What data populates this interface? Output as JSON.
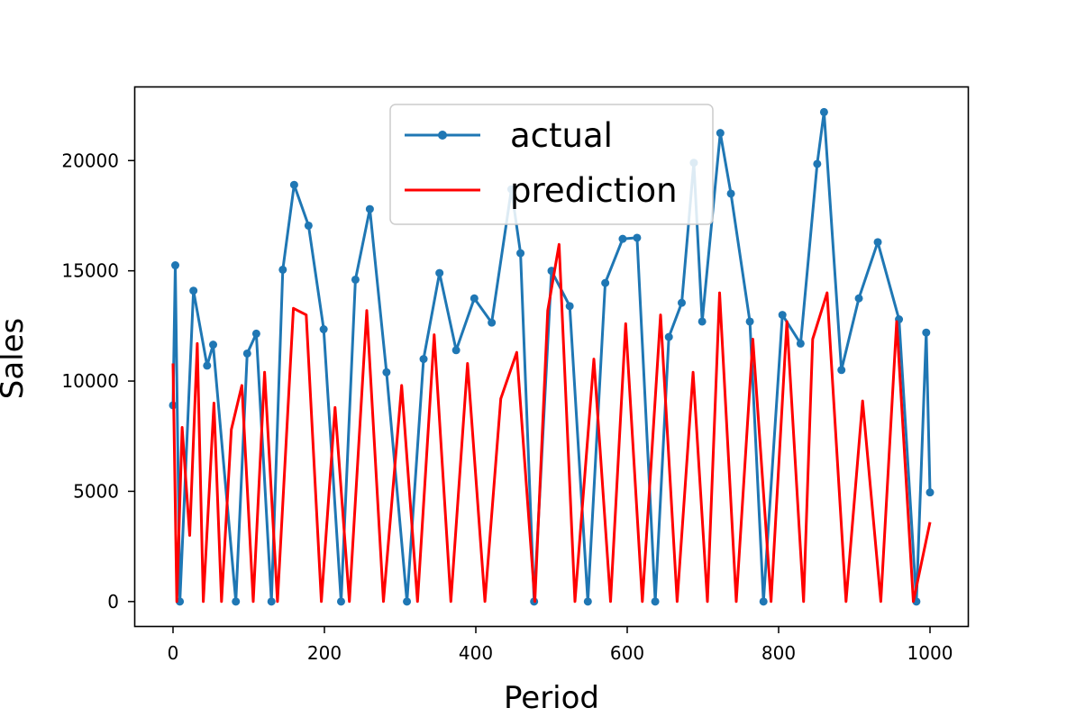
{
  "chart_data": {
    "type": "line",
    "title": "",
    "xlabel": "Period",
    "ylabel": "Sales",
    "xlim": [
      -50,
      1050
    ],
    "ylim": [
      -1110,
      23320
    ],
    "xticks": [
      0,
      200,
      400,
      600,
      800,
      1000
    ],
    "yticks": [
      0,
      5000,
      10000,
      15000,
      20000
    ],
    "grid": false,
    "legend_position": "top-center",
    "series": [
      {
        "name": "actual",
        "color": "#1f77b4",
        "marker": "circle",
        "x": [
          0,
          3,
          9,
          27,
          45,
          53,
          83,
          98,
          110,
          130,
          145,
          160,
          179,
          199,
          222,
          241,
          260,
          282,
          309,
          331,
          352,
          374,
          398,
          421,
          447,
          459,
          477,
          500,
          524,
          548,
          571,
          594,
          613,
          637,
          655,
          672,
          688,
          699,
          723,
          737,
          762,
          780,
          805,
          829,
          851,
          860,
          883,
          906,
          931,
          959,
          982,
          995,
          1000
        ],
        "y": [
          8900,
          15250,
          0,
          14100,
          10700,
          11650,
          0,
          11250,
          12150,
          0,
          15050,
          18900,
          17050,
          12350,
          0,
          14600,
          17800,
          10400,
          0,
          11000,
          14900,
          11400,
          13750,
          12650,
          18700,
          15800,
          0,
          15000,
          13400,
          0,
          14450,
          16450,
          16500,
          0,
          12000,
          13550,
          19900,
          12700,
          21250,
          18500,
          12700,
          0,
          13000,
          11700,
          19850,
          22200,
          10500,
          13750,
          16300,
          12800,
          0,
          12200,
          4950
        ]
      },
      {
        "name": "prediction",
        "color": "#ff0000",
        "marker": "none",
        "x": [
          0,
          5,
          12,
          22,
          32,
          40,
          54,
          64,
          77,
          91,
          106,
          121,
          138,
          159,
          176,
          196,
          214,
          233,
          256,
          278,
          302,
          323,
          345,
          367,
          389,
          412,
          433,
          454,
          478,
          495,
          510,
          531,
          556,
          578,
          598,
          620,
          644,
          666,
          687,
          706,
          722,
          744,
          766,
          790,
          811,
          833,
          845,
          864,
          889,
          911,
          935,
          956,
          978,
          1000
        ],
        "y": [
          10800,
          0,
          7900,
          3000,
          11700,
          0,
          9000,
          0,
          7800,
          9800,
          0,
          10400,
          0,
          13300,
          13000,
          0,
          8800,
          0,
          13200,
          0,
          9800,
          0,
          12100,
          0,
          10800,
          0,
          9200,
          11300,
          0,
          13200,
          16200,
          0,
          11000,
          0,
          12600,
          0,
          13000,
          0,
          10400,
          0,
          14000,
          0,
          11900,
          0,
          12700,
          0,
          11900,
          14000,
          0,
          9100,
          0,
          12700,
          0,
          3600
        ]
      }
    ]
  }
}
